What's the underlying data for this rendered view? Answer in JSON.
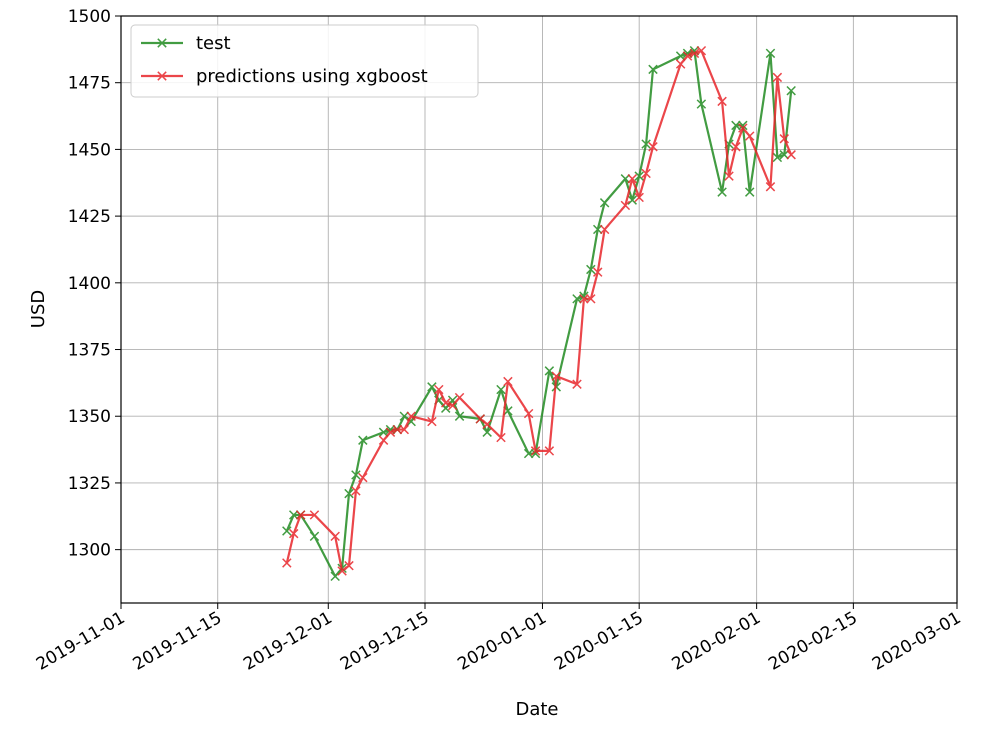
{
  "chart_data": {
    "type": "line",
    "xlabel": "Date",
    "ylabel": "USD",
    "xlim": [
      "2019-11-01",
      "2020-03-01"
    ],
    "ylim": [
      1280,
      1500
    ],
    "x_ticks": [
      "2019-11-01",
      "2019-11-15",
      "2019-12-01",
      "2019-12-15",
      "2020-01-01",
      "2020-01-15",
      "2020-02-01",
      "2020-02-15",
      "2020-03-01"
    ],
    "y_ticks": [
      1300,
      1325,
      1350,
      1375,
      1400,
      1425,
      1450,
      1475,
      1500
    ],
    "grid": true,
    "legend_position": "top-left",
    "series": [
      {
        "name": "test",
        "color": "#228B22",
        "marker": "x",
        "points": [
          [
            "2019-11-25",
            1307
          ],
          [
            "2019-11-26",
            1313
          ],
          [
            "2019-11-27",
            1313
          ],
          [
            "2019-11-29",
            1305
          ],
          [
            "2019-12-02",
            1290
          ],
          [
            "2019-12-03",
            1293
          ],
          [
            "2019-12-04",
            1321
          ],
          [
            "2019-12-05",
            1328
          ],
          [
            "2019-12-06",
            1341
          ],
          [
            "2019-12-09",
            1344
          ],
          [
            "2019-12-10",
            1345
          ],
          [
            "2019-12-11",
            1345
          ],
          [
            "2019-12-12",
            1350
          ],
          [
            "2019-12-13",
            1348
          ],
          [
            "2019-12-16",
            1361
          ],
          [
            "2019-12-17",
            1356
          ],
          [
            "2019-12-18",
            1353
          ],
          [
            "2019-12-19",
            1356
          ],
          [
            "2019-12-20",
            1350
          ],
          [
            "2019-12-23",
            1349
          ],
          [
            "2019-12-24",
            1344
          ],
          [
            "2019-12-26",
            1360
          ],
          [
            "2019-12-27",
            1352
          ],
          [
            "2019-12-30",
            1336
          ],
          [
            "2019-12-31",
            1336
          ],
          [
            "2020-01-02",
            1367
          ],
          [
            "2020-01-03",
            1361
          ],
          [
            "2020-01-06",
            1394
          ],
          [
            "2020-01-07",
            1395
          ],
          [
            "2020-01-08",
            1405
          ],
          [
            "2020-01-09",
            1420
          ],
          [
            "2020-01-10",
            1430
          ],
          [
            "2020-01-13",
            1439
          ],
          [
            "2020-01-14",
            1431
          ],
          [
            "2020-01-15",
            1440
          ],
          [
            "2020-01-16",
            1452
          ],
          [
            "2020-01-17",
            1480
          ],
          [
            "2020-01-21",
            1485
          ],
          [
            "2020-01-22",
            1486
          ],
          [
            "2020-01-23",
            1487
          ],
          [
            "2020-01-24",
            1467
          ],
          [
            "2020-01-27",
            1434
          ],
          [
            "2020-01-28",
            1452
          ],
          [
            "2020-01-29",
            1459
          ],
          [
            "2020-01-30",
            1459
          ],
          [
            "2020-01-31",
            1434
          ],
          [
            "2020-02-03",
            1486
          ],
          [
            "2020-02-04",
            1447
          ],
          [
            "2020-02-05",
            1448
          ],
          [
            "2020-02-06",
            1472
          ]
        ]
      },
      {
        "name": "predictions using xgboost",
        "color": "#E8262B",
        "marker": "x",
        "points": [
          [
            "2019-11-25",
            1295
          ],
          [
            "2019-11-26",
            1306
          ],
          [
            "2019-11-27",
            1313
          ],
          [
            "2019-11-29",
            1313
          ],
          [
            "2019-12-02",
            1305
          ],
          [
            "2019-12-03",
            1292
          ],
          [
            "2019-12-04",
            1294
          ],
          [
            "2019-12-05",
            1322
          ],
          [
            "2019-12-06",
            1327
          ],
          [
            "2019-12-09",
            1341
          ],
          [
            "2019-12-10",
            1344
          ],
          [
            "2019-12-11",
            1345
          ],
          [
            "2019-12-12",
            1345
          ],
          [
            "2019-12-13",
            1350
          ],
          [
            "2019-12-16",
            1348
          ],
          [
            "2019-12-17",
            1360
          ],
          [
            "2019-12-18",
            1355
          ],
          [
            "2019-12-19",
            1354
          ],
          [
            "2019-12-20",
            1357
          ],
          [
            "2019-12-23",
            1349
          ],
          [
            "2019-12-24",
            1347
          ],
          [
            "2019-12-26",
            1342
          ],
          [
            "2019-12-27",
            1363
          ],
          [
            "2019-12-30",
            1351
          ],
          [
            "2019-12-31",
            1337
          ],
          [
            "2020-01-02",
            1337
          ],
          [
            "2020-01-03",
            1365
          ],
          [
            "2020-01-06",
            1362
          ],
          [
            "2020-01-07",
            1394
          ],
          [
            "2020-01-08",
            1394
          ],
          [
            "2020-01-09",
            1404
          ],
          [
            "2020-01-10",
            1420
          ],
          [
            "2020-01-13",
            1429
          ],
          [
            "2020-01-14",
            1439
          ],
          [
            "2020-01-15",
            1432
          ],
          [
            "2020-01-16",
            1441
          ],
          [
            "2020-01-17",
            1451
          ],
          [
            "2020-01-21",
            1482
          ],
          [
            "2020-01-22",
            1485
          ],
          [
            "2020-01-23",
            1486
          ],
          [
            "2020-01-24",
            1487
          ],
          [
            "2020-01-27",
            1468
          ],
          [
            "2020-01-28",
            1440
          ],
          [
            "2020-01-29",
            1451
          ],
          [
            "2020-01-30",
            1458
          ],
          [
            "2020-01-31",
            1455
          ],
          [
            "2020-02-03",
            1436
          ],
          [
            "2020-02-04",
            1477
          ],
          [
            "2020-02-05",
            1454
          ],
          [
            "2020-02-06",
            1448
          ]
        ]
      }
    ]
  }
}
